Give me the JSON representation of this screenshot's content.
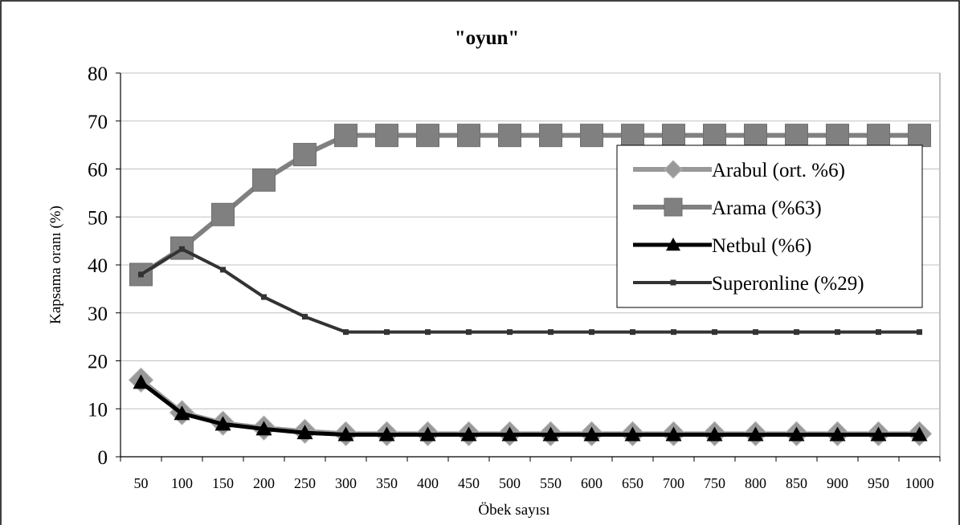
{
  "chart_data": {
    "type": "line",
    "title": "\"oyun\"",
    "xlabel": "Öbek sayısı",
    "ylabel": "Kapsama oranı (%)",
    "ylim": [
      0,
      80
    ],
    "yticks": [
      "0",
      "10",
      "20",
      "30",
      "40",
      "50",
      "60",
      "70",
      "80"
    ],
    "grid": true,
    "legend_position": "right",
    "categories": [
      "50",
      "100",
      "150",
      "200",
      "250",
      "300",
      "350",
      "400",
      "450",
      "500",
      "550",
      "600",
      "650",
      "700",
      "750",
      "800",
      "850",
      "900",
      "950",
      "1000"
    ],
    "series": [
      {
        "name": "Arabul (ort. %6)",
        "color": "#999999",
        "marker": "diamond",
        "values": [
          16,
          9.2,
          7,
          6,
          5.3,
          4.8,
          4.8,
          4.8,
          4.8,
          4.8,
          4.8,
          4.8,
          4.8,
          4.8,
          4.8,
          4.8,
          4.8,
          4.8,
          4.8,
          4.8
        ]
      },
      {
        "name": "Arama (%63)",
        "color": "#808080",
        "marker": "square",
        "values": [
          38,
          43.5,
          50.5,
          57.7,
          63,
          67,
          67,
          67,
          67,
          67,
          67,
          67,
          67,
          67,
          67,
          67,
          67,
          67,
          67,
          67
        ]
      },
      {
        "name": "Netbul (%6)",
        "color": "#000000",
        "marker": "triangle",
        "values": [
          15.5,
          9,
          6.8,
          5.8,
          5,
          4.6,
          4.6,
          4.6,
          4.6,
          4.6,
          4.6,
          4.6,
          4.6,
          4.6,
          4.6,
          4.6,
          4.6,
          4.6,
          4.6,
          4.6
        ]
      },
      {
        "name": "Superonline (%29)",
        "color": "#333333",
        "marker": "small-square",
        "values": [
          38,
          43.3,
          39,
          33.3,
          29.2,
          26,
          26,
          26,
          26,
          26,
          26,
          26,
          26,
          26,
          26,
          26,
          26,
          26,
          26,
          26
        ]
      }
    ]
  }
}
